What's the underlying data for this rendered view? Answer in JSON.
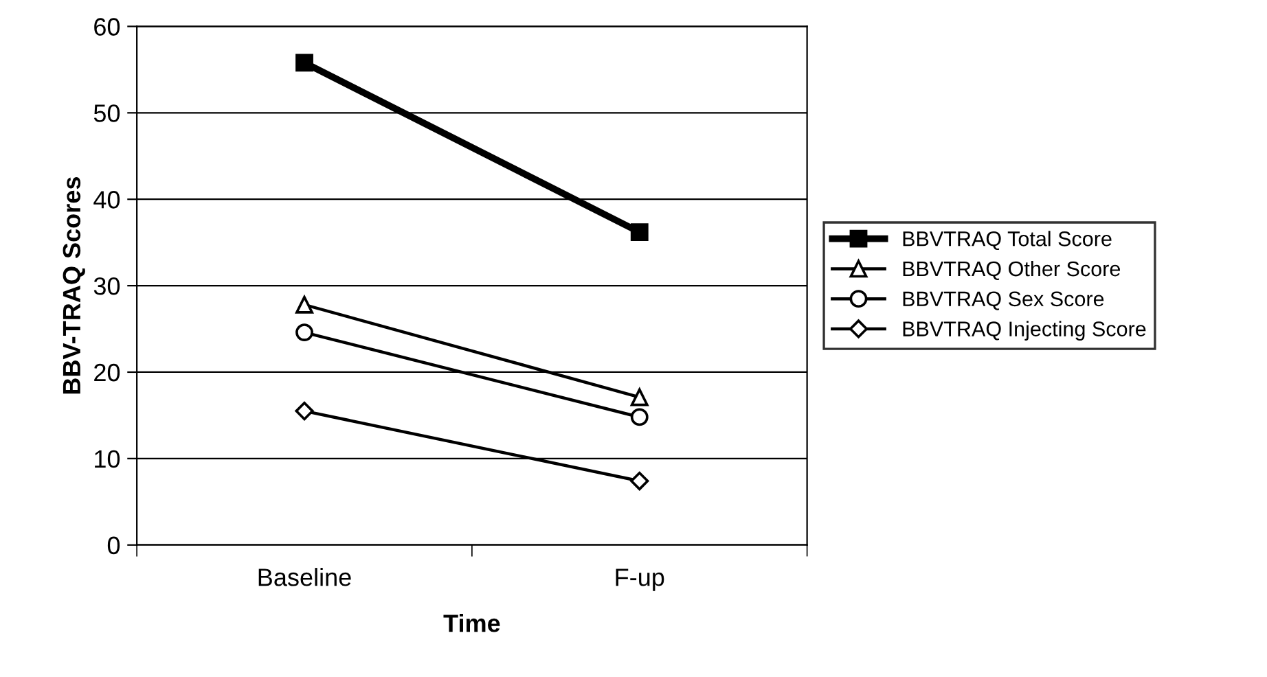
{
  "chart_data": {
    "type": "line",
    "xlabel": "Time",
    "ylabel": "BBV-TRAQ Scores",
    "categories": [
      "Baseline",
      "F-up"
    ],
    "series": [
      {
        "name": "BBVTRAQ Total Score",
        "color": "#000000",
        "values": [
          55.8,
          36.2
        ],
        "marker": "square"
      },
      {
        "name": "BBVTRAQ Other Score",
        "color": "#000000",
        "values": [
          27.8,
          17.1
        ],
        "marker": "triangle"
      },
      {
        "name": "BBVTRAQ Sex Score",
        "color": "#000000",
        "values": [
          24.6,
          14.8
        ],
        "marker": "circle"
      },
      {
        "name": "BBVTRAQ Injecting Score",
        "color": "#000000",
        "values": [
          15.5,
          7.4
        ],
        "marker": "diamond"
      }
    ],
    "ylim": [
      0,
      60
    ],
    "yticks": [
      0,
      10,
      20,
      30,
      40,
      50,
      60
    ],
    "grid": "y",
    "legend": "right",
    "line_style": "solid"
  }
}
